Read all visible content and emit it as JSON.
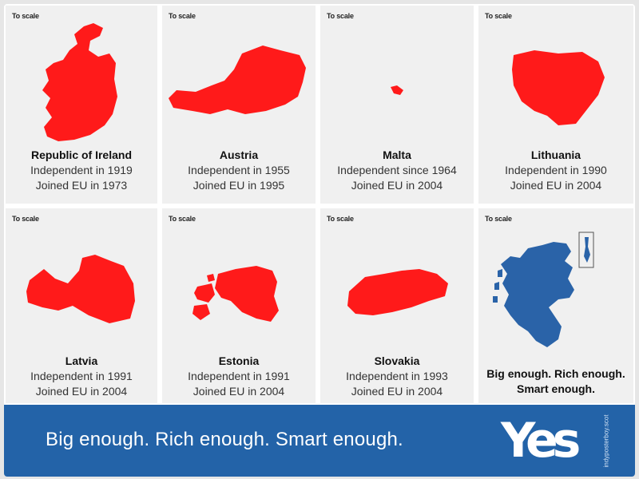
{
  "cards": [
    {
      "to_scale": "To scale",
      "name": "Republic of Ireland",
      "line1": "Independent in 1919",
      "line2": "Joined EU in 1973"
    },
    {
      "to_scale": "To scale",
      "name": "Austria",
      "line1": "Independent in 1955",
      "line2": "Joined EU in 1995"
    },
    {
      "to_scale": "To scale",
      "name": "Malta",
      "line1": "Independent since 1964",
      "line2": "Joined EU in 2004"
    },
    {
      "to_scale": "To scale",
      "name": "Lithuania",
      "line1": "Independent in 1990",
      "line2": "Joined EU in 2004"
    },
    {
      "to_scale": "To scale",
      "name": "Latvia",
      "line1": "Independent in 1991",
      "line2": "Joined EU in 2004"
    },
    {
      "to_scale": "To scale",
      "name": "Estonia",
      "line1": "Independent in 1991",
      "line2": "Joined EU in 2004"
    },
    {
      "to_scale": "To scale",
      "name": "Slovakia",
      "line1": "Independent in 1993",
      "line2": "Joined EU in 2004"
    },
    {
      "to_scale": "To scale",
      "line1": "Big enough. Rich enough.",
      "line2": "Smart enough."
    }
  ],
  "banner": {
    "tagline": "Big enough.  Rich enough.  Smart enough.",
    "logo_text": "Yes",
    "credit": "indyposterboy.scot"
  },
  "colors": {
    "country_red": "#ff1a1a",
    "scotland_blue": "#2a63a8",
    "banner_blue": "#2363a8"
  }
}
